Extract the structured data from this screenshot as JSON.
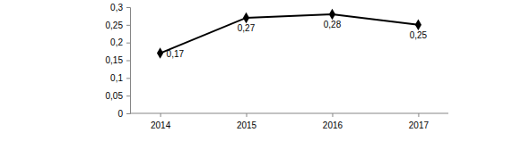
{
  "chart_data": {
    "type": "line",
    "categories": [
      "2014",
      "2015",
      "2016",
      "2017"
    ],
    "values": [
      0.17,
      0.27,
      0.28,
      0.25
    ],
    "value_labels": [
      "0,17",
      "0,27",
      "0,28",
      "0,25"
    ],
    "color": "#000000",
    "marker": "diamond",
    "ylim": [
      0,
      0.3
    ],
    "yticks": [
      0,
      {
        "value": 0.05,
        "label": "0,05"
      },
      {
        "value": 0.1,
        "label": "0,1"
      },
      {
        "value": 0.15,
        "label": "0,15"
      },
      {
        "value": 0.2,
        "label": "0,2"
      },
      {
        "value": 0.25,
        "label": "0,25"
      },
      {
        "value": 0.3,
        "label": "0,3"
      }
    ],
    "grid": false,
    "data_labels": true
  }
}
